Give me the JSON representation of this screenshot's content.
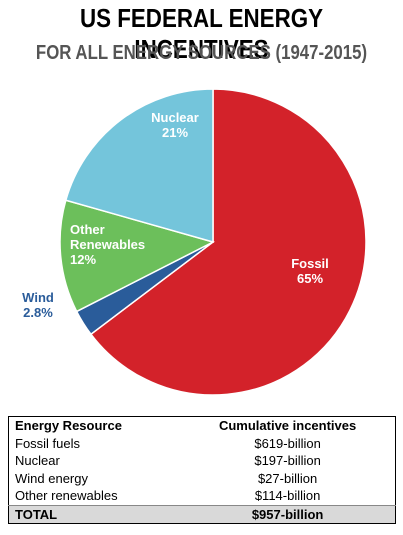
{
  "chart_data": {
    "type": "pie",
    "title": "US FEDERAL ENERGY INCENTIVES",
    "subtitle": "FOR ALL ENERGY SOURCES (1947-2015)",
    "slices": [
      {
        "name": "Fossil",
        "label": "Fossil",
        "value_label": "65%",
        "value": 64.7,
        "color": "#d3222a"
      },
      {
        "name": "Wind",
        "label": "Wind",
        "value_label": "2.8%",
        "value": 2.8,
        "color": "#2a5c9a"
      },
      {
        "name": "Other Renewables",
        "label": "Other Renewables",
        "value_label": "12%",
        "value": 11.9,
        "color": "#6cbf5b"
      },
      {
        "name": "Nuclear",
        "label": "Nuclear",
        "value_label": "21%",
        "value": 20.6,
        "color": "#74c5db"
      }
    ]
  },
  "table": {
    "headers": [
      "Energy Resource",
      "Cumulative incentives"
    ],
    "rows": [
      [
        "Fossil fuels",
        "$619-billion"
      ],
      [
        "Nuclear",
        "$197-billion"
      ],
      [
        "Wind energy",
        "$27-billion"
      ],
      [
        "Other renewables",
        "$114-billion"
      ]
    ],
    "total": [
      "TOTAL",
      "$957-billion"
    ]
  }
}
